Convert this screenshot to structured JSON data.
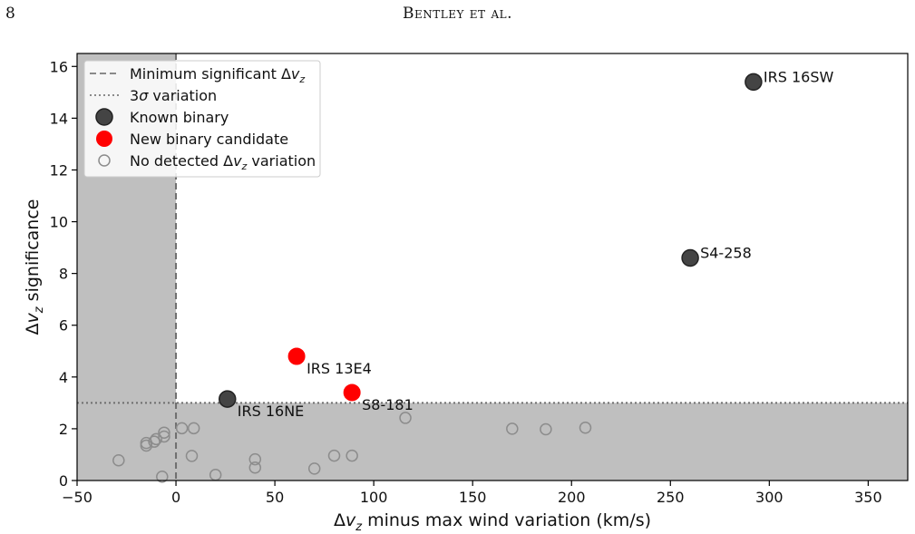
{
  "page": {
    "number": "8",
    "running_head": "Bentley et al."
  },
  "chart_data": {
    "type": "scatter",
    "xlabel": "Δv_z minus max wind variation (km/s)",
    "ylabel": "Δv_z significance",
    "xlim": [
      -50,
      370
    ],
    "ylim": [
      0,
      16.5
    ],
    "xticks": [
      -50,
      0,
      50,
      100,
      150,
      200,
      250,
      300,
      350
    ],
    "yticks": [
      0,
      2,
      4,
      6,
      8,
      10,
      12,
      14,
      16
    ],
    "grid": false,
    "legend_position": "top-left",
    "thresholds": {
      "min_significant_dvz": 0,
      "sigma3": 3
    },
    "legend": [
      {
        "key": "min_dvz",
        "label": "Minimum significant Δv_z",
        "style": "dashed-line"
      },
      {
        "key": "sigma3",
        "label": "3σ variation",
        "style": "dotted-line"
      },
      {
        "key": "known",
        "label": "Known binary",
        "style": "dark-filled-circle"
      },
      {
        "key": "candidate",
        "label": "New binary candidate",
        "style": "red-filled-circle"
      },
      {
        "key": "nodetect",
        "label": "No detected Δv_z variation",
        "style": "open-circle"
      }
    ],
    "colors": {
      "known": "#444444",
      "candidate": "#ff0000",
      "nodetect": "#8c8c8c",
      "shade": "#bfbfbf"
    },
    "series": [
      {
        "key": "known",
        "points": [
          {
            "x": 292,
            "y": 15.4,
            "label": "IRS 16SW"
          },
          {
            "x": 260,
            "y": 8.6,
            "label": "S4-258"
          },
          {
            "x": 26,
            "y": 3.15,
            "label": "IRS 16NE"
          }
        ]
      },
      {
        "key": "candidate",
        "points": [
          {
            "x": 61,
            "y": 4.8,
            "label": "IRS 13E4"
          },
          {
            "x": 89,
            "y": 3.4,
            "label": "S8-181"
          }
        ]
      },
      {
        "key": "nodetect",
        "points": [
          {
            "x": -29,
            "y": 0.78
          },
          {
            "x": -15,
            "y": 1.35
          },
          {
            "x": -15,
            "y": 1.45
          },
          {
            "x": -11,
            "y": 1.5
          },
          {
            "x": -10,
            "y": 1.6
          },
          {
            "x": -6,
            "y": 1.7
          },
          {
            "x": -6,
            "y": 1.85
          },
          {
            "x": -7,
            "y": 0.15
          },
          {
            "x": 3,
            "y": 2.02
          },
          {
            "x": 9,
            "y": 2.02
          },
          {
            "x": 8,
            "y": 0.95
          },
          {
            "x": 20,
            "y": 0.22
          },
          {
            "x": 40,
            "y": 0.82
          },
          {
            "x": 40,
            "y": 0.5
          },
          {
            "x": 70,
            "y": 0.46
          },
          {
            "x": 80,
            "y": 0.96
          },
          {
            "x": 89,
            "y": 0.96
          },
          {
            "x": 116,
            "y": 2.42
          },
          {
            "x": 170,
            "y": 2.0
          },
          {
            "x": 187,
            "y": 1.98
          },
          {
            "x": 207,
            "y": 2.04
          }
        ]
      }
    ]
  }
}
